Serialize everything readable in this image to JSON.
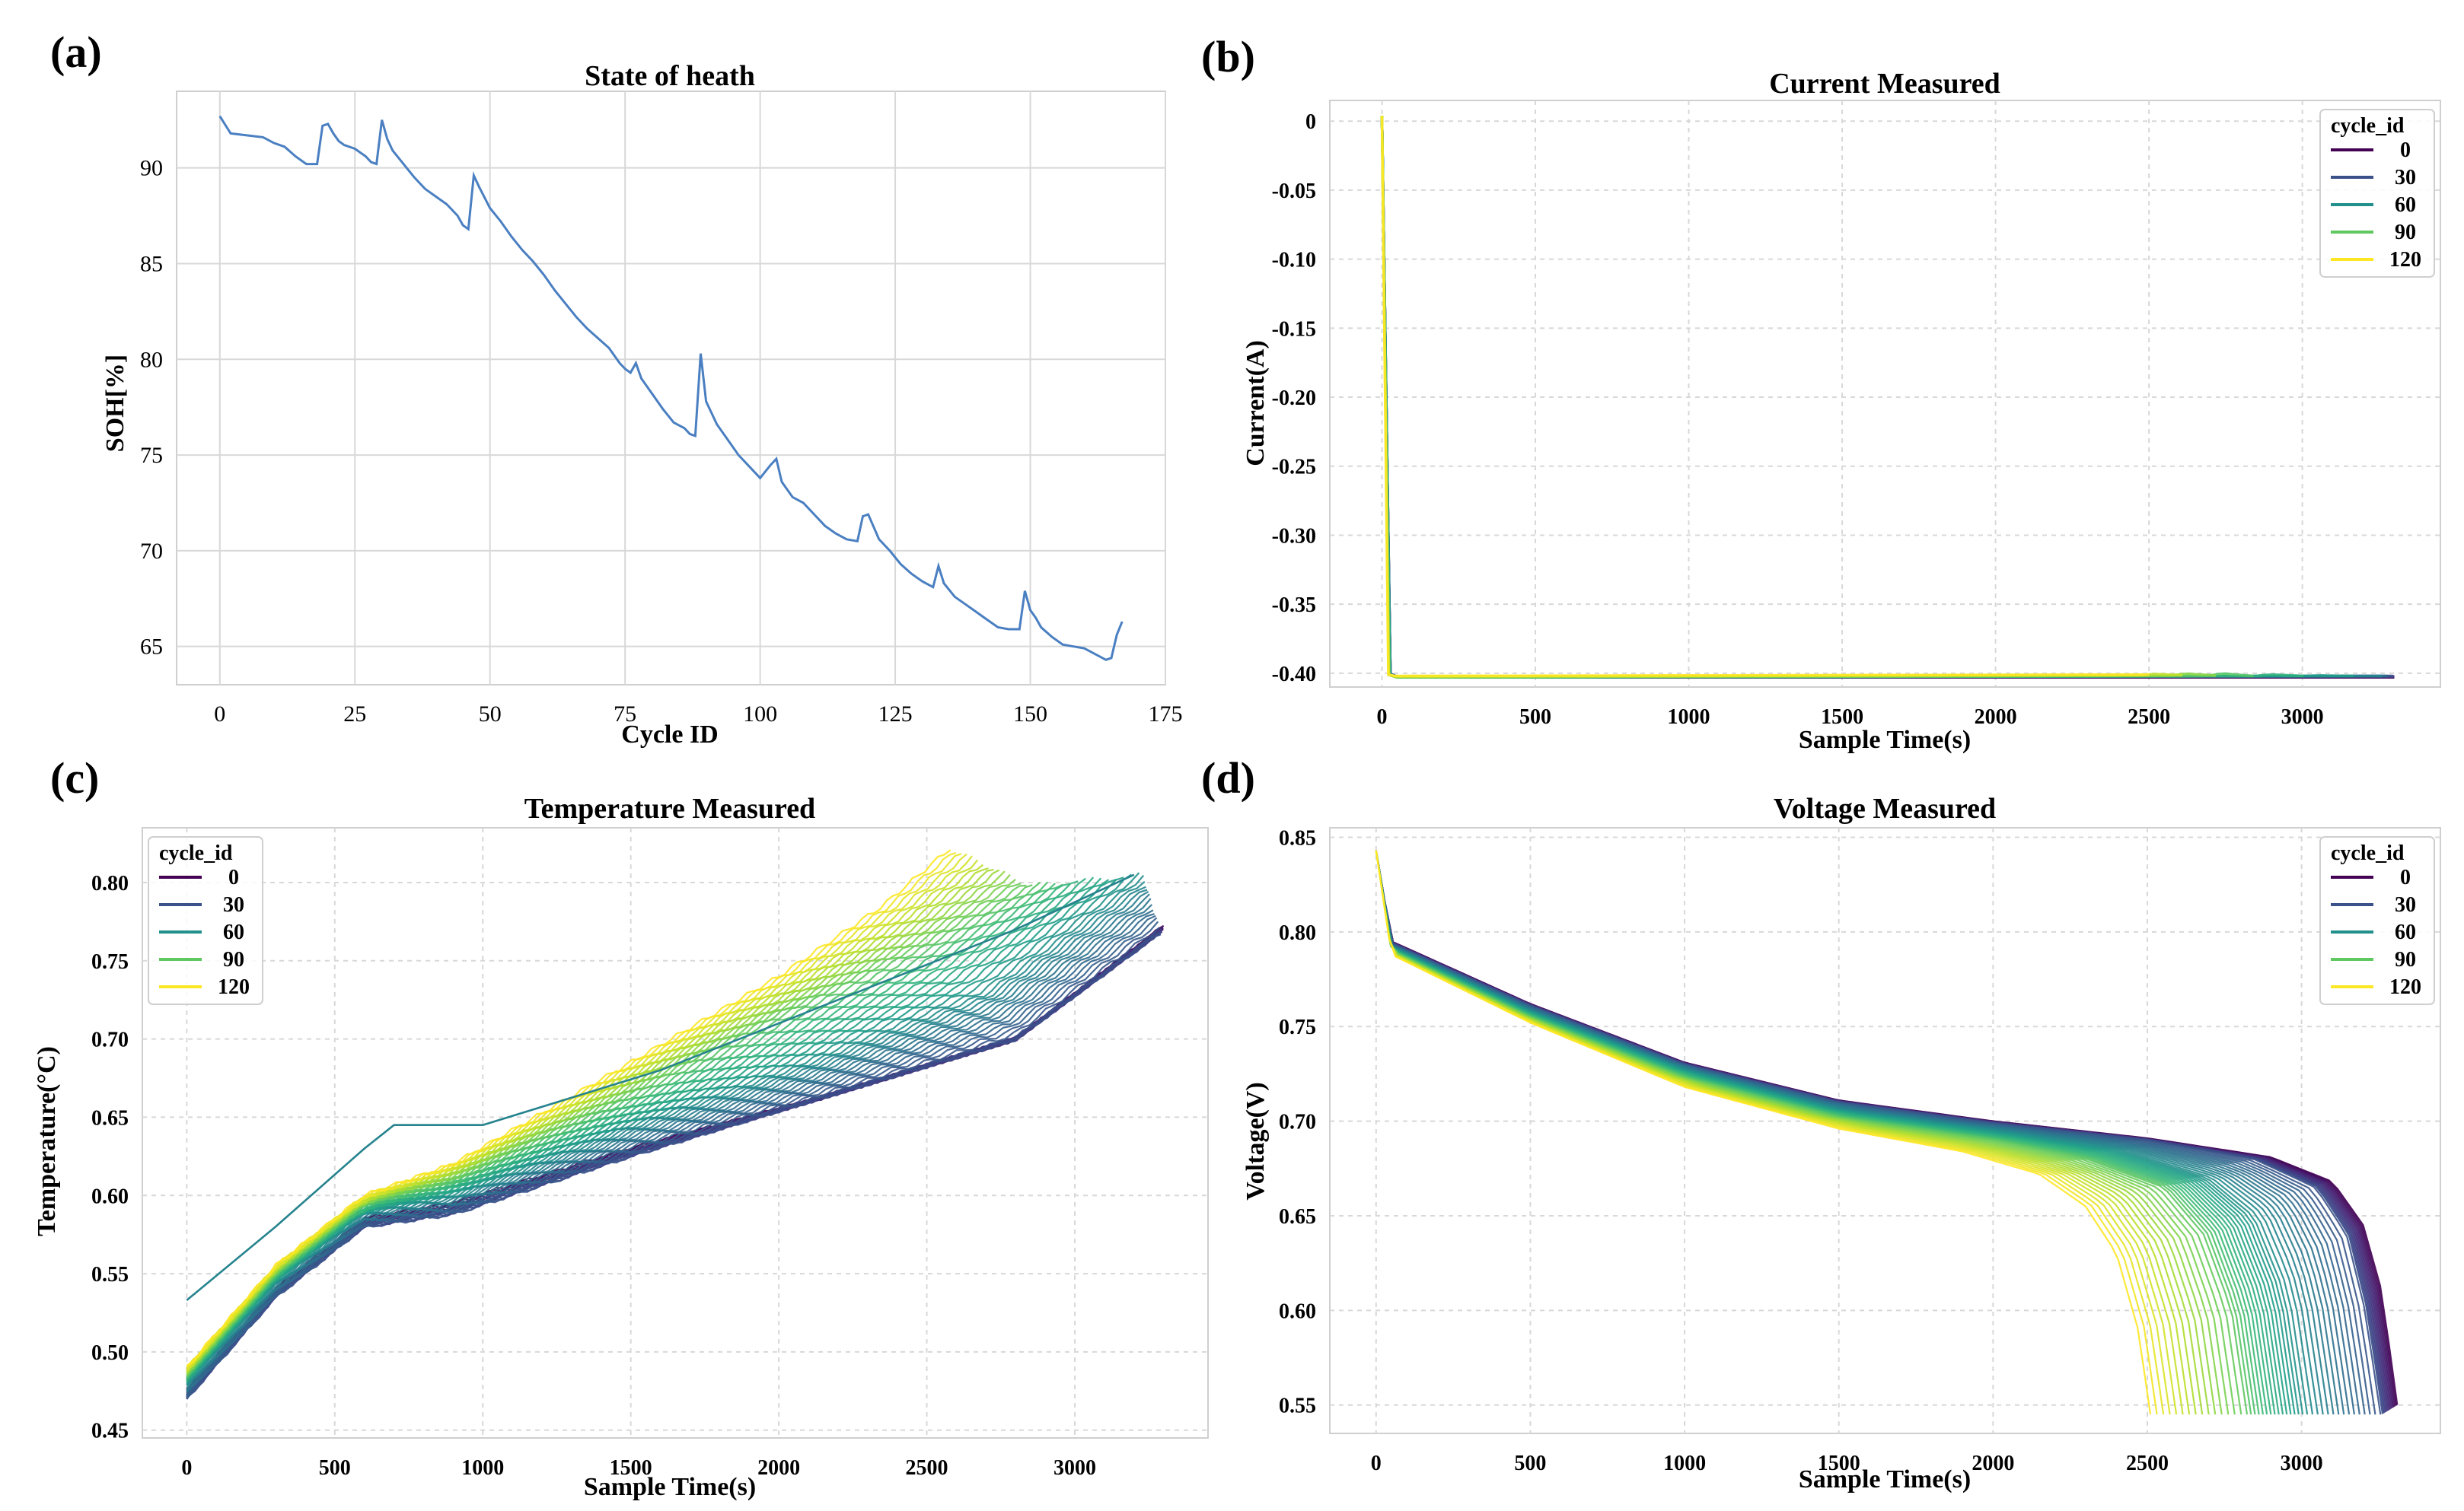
{
  "colors": {
    "soh_line": "#4a7fc1",
    "grid": "#d8d8d8",
    "frame": "#cfcfcf",
    "text": "#111111",
    "viridis": [
      "#440154",
      "#482878",
      "#3e4989",
      "#31688e",
      "#26828e",
      "#1f9e89",
      "#35b779",
      "#6ece58",
      "#b5de2b",
      "#fde725"
    ]
  },
  "chart_data": [
    {
      "panel": "(a)",
      "type": "line",
      "title": "State of heath",
      "xlabel": "Cycle ID",
      "ylabel": "SOH[%]",
      "xlim": [
        -8,
        175
      ],
      "ylim": [
        63,
        94
      ],
      "xticks": [
        0,
        25,
        50,
        75,
        100,
        125,
        150,
        175
      ],
      "yticks": [
        65,
        70,
        75,
        80,
        85,
        90
      ],
      "series": [
        {
          "name": "SOH",
          "x": [
            0,
            2,
            5,
            8,
            10,
            12,
            14,
            16,
            18,
            19,
            20,
            21,
            22,
            23,
            25,
            27,
            28,
            29,
            30,
            31,
            32,
            34,
            36,
            38,
            40,
            42,
            44,
            45,
            46,
            47,
            48,
            50,
            52,
            54,
            56,
            58,
            60,
            62,
            64,
            66,
            68,
            70,
            72,
            74,
            75,
            76,
            77,
            78,
            80,
            82,
            84,
            86,
            87,
            88,
            89,
            90,
            92,
            94,
            96,
            98,
            100,
            102,
            103,
            104,
            106,
            108,
            110,
            112,
            114,
            116,
            118,
            119,
            120,
            122,
            124,
            126,
            128,
            130,
            132,
            133,
            134,
            136,
            138,
            140,
            142,
            144,
            146,
            148,
            149,
            150,
            151,
            152,
            154,
            156,
            158,
            160,
            162,
            164,
            165,
            166,
            167
          ],
          "y": [
            92.7,
            91.8,
            91.7,
            91.6,
            91.3,
            91.1,
            90.6,
            90.2,
            90.2,
            92.2,
            92.3,
            91.8,
            91.4,
            91.2,
            91.0,
            90.6,
            90.3,
            90.2,
            92.5,
            91.5,
            90.9,
            90.2,
            89.5,
            88.9,
            88.5,
            88.1,
            87.5,
            87.0,
            86.8,
            89.6,
            89.0,
            87.9,
            87.2,
            86.4,
            85.7,
            85.1,
            84.4,
            83.6,
            82.9,
            82.2,
            81.6,
            81.1,
            80.6,
            79.8,
            79.5,
            79.3,
            79.8,
            79.0,
            78.2,
            77.4,
            76.7,
            76.4,
            76.1,
            76.0,
            80.3,
            77.8,
            76.6,
            75.8,
            75.0,
            74.4,
            73.8,
            74.5,
            74.8,
            73.6,
            72.8,
            72.5,
            71.9,
            71.3,
            70.9,
            70.6,
            70.5,
            71.8,
            71.9,
            70.6,
            70.0,
            69.3,
            68.8,
            68.4,
            68.1,
            69.2,
            68.3,
            67.6,
            67.2,
            66.8,
            66.4,
            66.0,
            65.9,
            65.9,
            67.9,
            66.9,
            66.5,
            66.0,
            65.5,
            65.1,
            65.0,
            64.9,
            64.6,
            64.3,
            64.4,
            65.6,
            66.3
          ]
        }
      ]
    },
    {
      "panel": "(b)",
      "type": "line",
      "title": "Current Measured",
      "xlabel": "Sample Time(s)",
      "ylabel": "Current(A)",
      "xlim": [
        -170,
        3450
      ],
      "ylim": [
        -0.41,
        0.015
      ],
      "xticks": [
        0,
        500,
        1000,
        1500,
        2000,
        2500,
        3000
      ],
      "yticks": [
        0,
        -0.05,
        -0.1,
        -0.15,
        -0.2,
        -0.25,
        -0.3,
        -0.35,
        -0.4
      ],
      "ytick_labels": [
        "0",
        "-0.05",
        "-0.10",
        "-0.15",
        "-0.20",
        "-0.25",
        "-0.30",
        "-0.35",
        "-0.40"
      ],
      "legend": {
        "title": "cycle_id",
        "entries": [
          "0",
          "30",
          "60",
          "90",
          "120"
        ],
        "placement": "top-right"
      },
      "series": [
        {
          "name": "0",
          "x": [
            0,
            20,
            40,
            3300
          ],
          "y": [
            0.004,
            -0.4,
            -0.403,
            -0.403
          ]
        },
        {
          "name": "30",
          "x": [
            0,
            25,
            48,
            3300
          ],
          "y": [
            0.003,
            -0.4,
            -0.403,
            -0.402
          ]
        },
        {
          "name": "60",
          "x": [
            0,
            18,
            38,
            3250
          ],
          "y": [
            0.004,
            -0.4,
            -0.403,
            -0.402
          ]
        },
        {
          "name": "90",
          "x": [
            0,
            15,
            35,
            2650,
            2700,
            2800
          ],
          "y": [
            0.004,
            -0.4,
            -0.403,
            -0.402,
            -0.4,
            -0.402
          ]
        },
        {
          "name": "120",
          "x": [
            0,
            12,
            30,
            2500
          ],
          "y": [
            0.004,
            -0.4,
            -0.402,
            -0.401
          ]
        }
      ]
    },
    {
      "panel": "(c)",
      "type": "line",
      "title": "Temperature Measured",
      "xlabel": "Sample Time(s)",
      "ylabel": "Temperature(°C)",
      "xlim": [
        -150,
        3450
      ],
      "ylim": [
        0.445,
        0.835
      ],
      "xticks": [
        0,
        500,
        1000,
        1500,
        2000,
        2500,
        3000
      ],
      "yticks": [
        0.45,
        0.5,
        0.55,
        0.6,
        0.65,
        0.7,
        0.75,
        0.8
      ],
      "ytick_labels": [
        "0.45",
        "0.50",
        "0.55",
        "0.60",
        "0.65",
        "0.70",
        "0.75",
        "0.80"
      ],
      "legend": {
        "title": "cycle_id",
        "entries": [
          "0",
          "30",
          "60",
          "90",
          "120"
        ],
        "placement": "top-left"
      },
      "series": [
        {
          "name": "0",
          "x": [
            0,
            300,
            600,
            900,
            1500,
            2100,
            2800,
            3300
          ],
          "y": [
            0.475,
            0.54,
            0.585,
            0.595,
            0.63,
            0.66,
            0.7,
            0.772
          ]
        },
        {
          "name": "30",
          "x": [
            0,
            300,
            600,
            900,
            1500,
            2100,
            2800,
            3290
          ],
          "y": [
            0.47,
            0.535,
            0.58,
            0.588,
            0.625,
            0.66,
            0.7,
            0.768
          ]
        },
        {
          "name": "60",
          "x": [
            0,
            300,
            600,
            900,
            1500,
            2100,
            2700,
            3230
          ],
          "y": [
            0.48,
            0.545,
            0.59,
            0.6,
            0.645,
            0.685,
            0.73,
            0.805
          ]
        },
        {
          "name": "90",
          "x": [
            0,
            300,
            600,
            900,
            1500,
            2000,
            2500,
            2850
          ],
          "y": [
            0.485,
            0.55,
            0.595,
            0.61,
            0.665,
            0.715,
            0.76,
            0.798
          ]
        },
        {
          "name": "120",
          "x": [
            0,
            300,
            600,
            900,
            1500,
            2000,
            2350,
            2580
          ],
          "y": [
            0.49,
            0.555,
            0.6,
            0.62,
            0.685,
            0.74,
            0.785,
            0.822
          ]
        }
      ]
    },
    {
      "panel": "(d)",
      "type": "line",
      "title": "Voltage Measured",
      "xlabel": "Sample Time(s)",
      "ylabel": "Voltage(V)",
      "xlim": [
        -150,
        3450
      ],
      "ylim": [
        0.535,
        0.855
      ],
      "xticks": [
        0,
        500,
        1000,
        1500,
        2000,
        2500,
        3000
      ],
      "yticks": [
        0.55,
        0.6,
        0.65,
        0.7,
        0.75,
        0.8,
        0.85
      ],
      "ytick_labels": [
        "0.55",
        "0.60",
        "0.65",
        "0.70",
        "0.75",
        "0.80",
        "0.85"
      ],
      "legend": {
        "title": "cycle_id",
        "entries": [
          "0",
          "30",
          "60",
          "90",
          "120"
        ],
        "placement": "top-right"
      },
      "series": [
        {
          "name": "0",
          "x": [
            0,
            50,
            500,
            1000,
            1500,
            2000,
            2500,
            2900,
            3100,
            3200,
            3260,
            3310
          ],
          "y": [
            0.843,
            0.795,
            0.762,
            0.731,
            0.711,
            0.7,
            0.691,
            0.681,
            0.668,
            0.645,
            0.61,
            0.55
          ]
        },
        {
          "name": "30",
          "x": [
            0,
            50,
            500,
            1000,
            1500,
            2000,
            2500,
            2850,
            3050,
            3150,
            3210,
            3260
          ],
          "y": [
            0.843,
            0.794,
            0.761,
            0.73,
            0.71,
            0.699,
            0.69,
            0.68,
            0.665,
            0.64,
            0.6,
            0.545
          ]
        },
        {
          "name": "60",
          "x": [
            0,
            50,
            500,
            1000,
            1500,
            2000,
            2400,
            2700,
            2850,
            2950,
            3010
          ],
          "y": [
            0.843,
            0.792,
            0.758,
            0.727,
            0.706,
            0.695,
            0.685,
            0.67,
            0.65,
            0.61,
            0.545
          ]
        },
        {
          "name": "90",
          "x": [
            0,
            50,
            500,
            1000,
            1500,
            2000,
            2300,
            2550,
            2680,
            2770,
            2820
          ],
          "y": [
            0.843,
            0.79,
            0.755,
            0.723,
            0.702,
            0.69,
            0.68,
            0.665,
            0.64,
            0.6,
            0.545
          ]
        },
        {
          "name": "120",
          "x": [
            0,
            50,
            500,
            1000,
            1500,
            1900,
            2150,
            2300,
            2400,
            2470,
            2510
          ],
          "y": [
            0.843,
            0.788,
            0.752,
            0.718,
            0.696,
            0.684,
            0.672,
            0.655,
            0.63,
            0.59,
            0.545
          ]
        }
      ]
    }
  ]
}
